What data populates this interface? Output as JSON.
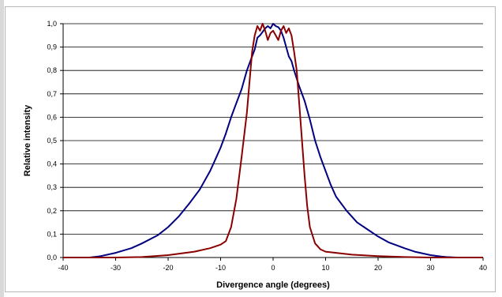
{
  "chart_data": {
    "type": "line",
    "title": "",
    "xlabel": "Divergence angle (degrees)",
    "ylabel": "Relative intensity",
    "xlim": [
      -40,
      40
    ],
    "ylim": [
      0,
      1
    ],
    "x_ticks": [
      -40,
      -30,
      -20,
      -10,
      0,
      10,
      20,
      30,
      40
    ],
    "y_ticks": [
      0,
      0.1,
      0.2,
      0.3,
      0.4,
      0.5,
      0.6,
      0.7,
      0.8,
      0.9,
      1.0
    ],
    "x_tick_labels": [
      "-40",
      "-30",
      "-20",
      "-10",
      "0",
      "10",
      "20",
      "30",
      "40"
    ],
    "y_tick_labels": [
      "0,0",
      "0,1",
      "0,2",
      "0,3",
      "0,4",
      "0,5",
      "0,6",
      "0,7",
      "0,8",
      "0,9",
      "1,0"
    ],
    "grid": "horizontal",
    "legend": "none",
    "series": [
      {
        "color": "#000080",
        "x": [
          -40,
          -35,
          -33,
          -30,
          -27,
          -25,
          -22,
          -20,
          -18,
          -16,
          -14,
          -12,
          -11,
          -10,
          -9,
          -8,
          -7,
          -6,
          -5,
          -4,
          -3.5,
          -3,
          -2.5,
          -2,
          -1.5,
          -1,
          -0.5,
          0,
          0.5,
          1,
          1.5,
          2,
          2.5,
          3,
          3.5,
          4,
          5,
          6,
          7,
          8,
          9,
          10,
          11,
          12,
          14,
          16,
          18,
          20,
          22,
          25,
          27,
          30,
          32,
          33,
          35,
          40
        ],
        "y": [
          0,
          0,
          0.005,
          0.02,
          0.04,
          0.06,
          0.095,
          0.13,
          0.175,
          0.23,
          0.29,
          0.37,
          0.42,
          0.47,
          0.53,
          0.6,
          0.66,
          0.72,
          0.8,
          0.86,
          0.89,
          0.94,
          0.95,
          0.965,
          0.98,
          0.99,
          0.98,
          1.0,
          0.99,
          0.985,
          0.97,
          0.94,
          0.9,
          0.86,
          0.84,
          0.8,
          0.73,
          0.67,
          0.59,
          0.5,
          0.43,
          0.37,
          0.31,
          0.26,
          0.2,
          0.15,
          0.12,
          0.09,
          0.065,
          0.04,
          0.025,
          0.01,
          0.004,
          0.002,
          0,
          0
        ]
      },
      {
        "color": "#8b0000",
        "x": [
          -40,
          -30,
          -25,
          -20,
          -15,
          -12,
          -10,
          -9,
          -8,
          -7,
          -6,
          -5,
          -4.5,
          -4,
          -3.5,
          -3,
          -2.5,
          -2,
          -1.5,
          -1,
          -0.5,
          0,
          0.5,
          1,
          1.5,
          2,
          2.5,
          3,
          3.5,
          4,
          4.5,
          5,
          5.5,
          6,
          6.5,
          7,
          8,
          9,
          10,
          12,
          15,
          20,
          25,
          30,
          40
        ],
        "y": [
          0,
          0,
          0.002,
          0.01,
          0.025,
          0.04,
          0.055,
          0.07,
          0.13,
          0.25,
          0.43,
          0.62,
          0.75,
          0.88,
          0.95,
          0.99,
          0.97,
          1.0,
          0.97,
          0.93,
          0.96,
          0.97,
          0.95,
          0.93,
          0.97,
          0.99,
          0.96,
          0.98,
          0.95,
          0.88,
          0.8,
          0.65,
          0.5,
          0.35,
          0.22,
          0.13,
          0.06,
          0.035,
          0.025,
          0.02,
          0.012,
          0.006,
          0.002,
          0,
          0
        ]
      }
    ]
  }
}
